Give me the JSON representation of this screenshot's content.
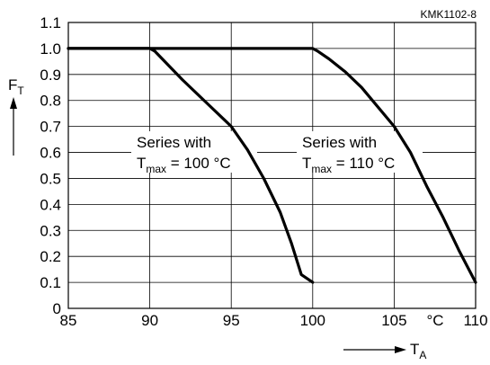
{
  "chart_data": {
    "type": "line",
    "figure_id": "KMK1102-8",
    "xlim": [
      85,
      110
    ],
    "ylim": [
      0,
      1.1
    ],
    "x_ticks": [
      85,
      90,
      95,
      100,
      105,
      110
    ],
    "y_ticks": [
      0,
      0.1,
      0.2,
      0.3,
      0.4,
      0.5,
      0.6,
      0.7,
      0.8,
      0.9,
      1.0,
      1.1
    ],
    "x_unit": "°C",
    "ylabel": {
      "main": "F",
      "sub": "T"
    },
    "xlabel": {
      "main": "T",
      "sub": "A"
    },
    "grid": true,
    "series": [
      {
        "name": "Series with T_max = 100 °C",
        "x": [
          85,
          90,
          90.3,
          92,
          93.5,
          95,
          96,
          97,
          98,
          98.7,
          99.3,
          100
        ],
        "y": [
          1.0,
          1.0,
          0.99,
          0.88,
          0.79,
          0.7,
          0.61,
          0.5,
          0.37,
          0.25,
          0.13,
          0.1
        ]
      },
      {
        "name": "Series with T_max = 110 °C",
        "x": [
          85,
          100,
          100.3,
          101,
          102,
          103,
          105,
          106,
          107,
          108,
          109,
          110
        ],
        "y": [
          1.0,
          1.0,
          0.99,
          0.96,
          0.91,
          0.85,
          0.7,
          0.6,
          0.47,
          0.35,
          0.22,
          0.1
        ]
      }
    ],
    "annotations": [
      {
        "line1": "Series with",
        "t": "T",
        "sub": "max",
        "rest": " = 100 °C"
      },
      {
        "line1": "Series with",
        "t": "T",
        "sub": "max",
        "rest": " = 110 °C"
      }
    ]
  }
}
